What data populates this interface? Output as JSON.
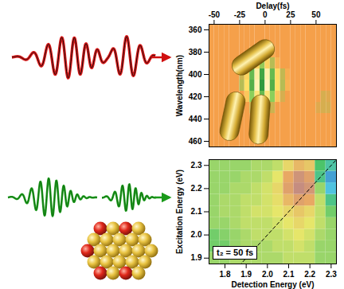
{
  "chart_data": [
    {
      "type": "spectrogram",
      "xlabel": "Delay(fs)",
      "ylabel": "Wavelength(nm)",
      "x": [
        -52.5,
        -47.5,
        -42.5,
        -37.5,
        -32.5,
        -27.5,
        -22.5,
        -17.5,
        -12.5,
        -7.5,
        -2.5,
        2.5,
        7.5,
        12.5,
        17.5,
        22.5,
        27.5,
        32.5,
        37.5,
        42.5,
        47.5,
        52.5,
        57.5,
        62.5,
        67.5
      ],
      "y": [
        360,
        370,
        380,
        390,
        400,
        410,
        420,
        430,
        440,
        450,
        460
      ],
      "z": [
        [
          0,
          0,
          0,
          0,
          0,
          0,
          0,
          0,
          0,
          0,
          0,
          0,
          0,
          0,
          0,
          0,
          0,
          0,
          0,
          0,
          0,
          0,
          0,
          0,
          0
        ],
        [
          0,
          0,
          0,
          0,
          0,
          0,
          0,
          0,
          0,
          0,
          0,
          0,
          0,
          0,
          0,
          0,
          0,
          0,
          0,
          0,
          0,
          0,
          0,
          0,
          0
        ],
        [
          0,
          0,
          0,
          0,
          0,
          0,
          0,
          0,
          0.1,
          -0.15,
          0.2,
          -0.15,
          0.1,
          0,
          0,
          0,
          0,
          0,
          0,
          0,
          0,
          0,
          0,
          0,
          0
        ],
        [
          0,
          0,
          0,
          0,
          0,
          0,
          0,
          0.15,
          -0.3,
          0.4,
          -0.45,
          0.4,
          -0.3,
          0.15,
          0,
          0,
          0,
          0,
          0,
          0,
          0,
          0,
          0,
          0,
          0
        ],
        [
          0,
          0,
          0,
          0,
          0,
          0,
          -0.2,
          0.4,
          -0.7,
          0.8,
          -0.9,
          0.85,
          -0.7,
          0.45,
          -0.25,
          0.1,
          0,
          0,
          0,
          0,
          0,
          0,
          0,
          0,
          0
        ],
        [
          0,
          0,
          0,
          0,
          0,
          0,
          -0.3,
          0.5,
          -0.8,
          0.9,
          -1,
          0.95,
          -0.8,
          0.5,
          -0.3,
          0.15,
          0,
          0,
          0,
          0,
          0,
          0,
          0,
          0,
          0
        ],
        [
          0,
          0,
          0,
          0,
          0,
          0,
          0,
          0.3,
          -0.5,
          0.6,
          -0.7,
          0.6,
          -0.5,
          0.3,
          -0.15,
          0,
          0,
          0,
          0,
          0,
          0,
          0,
          -0.15,
          -0.1,
          0
        ],
        [
          0,
          0,
          0,
          0,
          0,
          0,
          0,
          0,
          -0.2,
          0.3,
          -0.35,
          0.3,
          -0.2,
          0,
          0,
          0,
          0,
          0,
          0,
          0,
          0,
          -0.1,
          -0.15,
          -0.15,
          0
        ],
        [
          0,
          0,
          0,
          0,
          0,
          0,
          0,
          0,
          0,
          0,
          -0.1,
          0.1,
          0,
          0,
          0,
          0,
          0,
          0,
          0,
          0,
          0,
          0,
          0,
          0,
          0
        ],
        [
          0,
          0,
          0,
          0,
          0,
          0,
          0,
          0,
          0,
          0,
          0,
          0,
          0,
          0,
          0,
          0,
          0,
          0,
          0,
          0,
          0,
          0,
          0,
          0,
          0
        ],
        [
          0,
          0,
          0,
          0,
          0,
          0,
          0,
          0,
          0,
          0,
          0,
          0,
          0,
          0,
          0,
          0,
          0,
          0,
          0,
          0,
          0,
          0,
          0,
          0,
          0
        ]
      ],
      "xlim": [
        -55,
        70
      ],
      "ylim": [
        465,
        355
      ],
      "xticks": [
        -50,
        -25,
        0,
        25,
        50
      ],
      "yticks": [
        360,
        380,
        400,
        420,
        440,
        460
      ]
    },
    {
      "type": "contour",
      "xlabel": "Detection Energy (eV)",
      "ylabel": "Excitation Energy (eV)",
      "annotation": "t₂ = 50 fs",
      "x": [
        1.75,
        1.8,
        1.85,
        1.9,
        1.95,
        2.0,
        2.05,
        2.1,
        2.15,
        2.2,
        2.25,
        2.3
      ],
      "y": [
        1.9,
        1.95,
        2.0,
        2.05,
        2.1,
        2.15,
        2.2,
        2.25,
        2.3
      ],
      "z": [
        [
          0,
          0,
          0.05,
          0.05,
          0.05,
          0.05,
          0.05,
          0.1,
          0.1,
          0.1,
          0,
          0
        ],
        [
          -0.1,
          -0.1,
          0,
          0.05,
          0.05,
          0.05,
          0.1,
          0.1,
          0.15,
          0.1,
          0,
          0
        ],
        [
          -0.1,
          -0.05,
          0,
          0.05,
          0.1,
          0.1,
          0.1,
          0.15,
          0.2,
          0.15,
          0.05,
          0
        ],
        [
          0,
          0,
          0.05,
          0.1,
          0.1,
          0.1,
          0.15,
          0.2,
          0.3,
          0.2,
          0.1,
          0
        ],
        [
          0,
          0.05,
          0.05,
          0.1,
          0.15,
          0.15,
          0.2,
          0.3,
          0.4,
          0.3,
          0.1,
          -0.1
        ],
        [
          0,
          0.05,
          0.05,
          0.1,
          0.1,
          0.15,
          0.25,
          0.5,
          0.7,
          0.6,
          0.1,
          -0.3
        ],
        [
          0,
          0,
          0.05,
          0.05,
          0.1,
          0.15,
          0.3,
          0.7,
          1,
          0.85,
          0,
          -0.6
        ],
        [
          0,
          0,
          0,
          0.05,
          0.05,
          0.1,
          0.2,
          0.6,
          0.9,
          0.7,
          -0.3,
          -0.7
        ],
        [
          0,
          0,
          0,
          0,
          0.05,
          0.05,
          0.1,
          0.3,
          0.5,
          0.4,
          -0.2,
          -0.4
        ]
      ],
      "xlim": [
        1.725,
        2.325
      ],
      "ylim": [
        1.875,
        2.325
      ],
      "xticks": [
        1.8,
        1.9,
        {
          "value": 2,
          "label": "2.0"
        },
        2.1,
        2.2,
        2.3
      ],
      "yticks": [
        1.9,
        {
          "value": 2,
          "label": "2.0"
        },
        2.1,
        2.2,
        2.3
      ]
    }
  ]
}
